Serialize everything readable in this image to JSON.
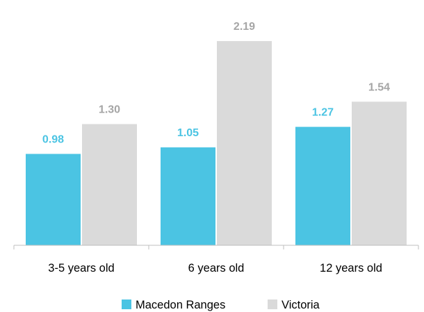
{
  "chart_data": {
    "type": "bar",
    "categories": [
      "3-5 years old",
      "6 years old",
      "12 years old"
    ],
    "series": [
      {
        "name": "Macedon Ranges",
        "values": [
          0.98,
          1.05,
          1.27
        ],
        "labels": [
          "0.98",
          "1.05",
          "1.27"
        ],
        "color": "#4bc4e3",
        "label_color": "#4bc4e3"
      },
      {
        "name": "Victoria",
        "values": [
          1.3,
          2.19,
          1.54
        ],
        "labels": [
          "1.30",
          "2.19",
          "1.54"
        ],
        "color": "#dadada",
        "label_color": "#a6a6a6"
      }
    ],
    "title": "",
    "xlabel": "",
    "ylabel": "",
    "ylim": [
      0,
      2.5
    ],
    "grid": false,
    "legend_position": "bottom"
  }
}
